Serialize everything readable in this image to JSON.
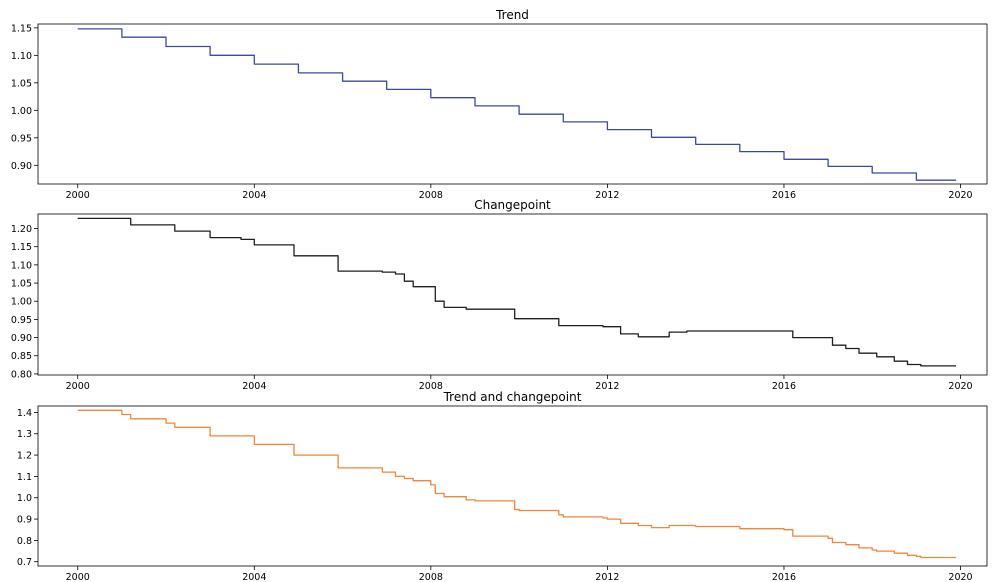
{
  "chart_data": [
    {
      "type": "line",
      "title": "Trend",
      "xlabel": "",
      "ylabel": "",
      "xlim": [
        1999.1,
        2020.6
      ],
      "ylim": [
        0.866,
        1.157
      ],
      "color": "#3b4a9c",
      "x_ticks": [
        2000,
        2004,
        2008,
        2012,
        2016,
        2020
      ],
      "x_tick_labels": [
        "2000",
        "2004",
        "2008",
        "2012",
        "2016",
        "2020"
      ],
      "y_ticks": [
        0.9,
        0.95,
        1.0,
        1.05,
        1.1,
        1.15
      ],
      "y_tick_labels": [
        "0.90",
        "0.95",
        "1.00",
        "1.05",
        "1.10",
        "1.15"
      ],
      "series": [
        {
          "step": "post",
          "x": [
            2000,
            2001,
            2002,
            2003,
            2004,
            2005,
            2006,
            2007,
            2008,
            2009,
            2010,
            2011,
            2012,
            2013,
            2014,
            2015,
            2016,
            2017,
            2018,
            2019,
            2019.9
          ],
          "y": [
            1.148,
            1.133,
            1.116,
            1.1,
            1.084,
            1.068,
            1.053,
            1.038,
            1.023,
            1.008,
            0.993,
            0.979,
            0.965,
            0.951,
            0.938,
            0.925,
            0.911,
            0.898,
            0.886,
            0.873,
            0.873
          ]
        }
      ]
    },
    {
      "type": "line",
      "title": "Changepoint",
      "xlabel": "",
      "ylabel": "",
      "xlim": [
        1999.1,
        2020.6
      ],
      "ylim": [
        0.797,
        1.24
      ],
      "color": "#1f1f1f",
      "x_ticks": [
        2000,
        2004,
        2008,
        2012,
        2016,
        2020
      ],
      "x_tick_labels": [
        "2000",
        "2004",
        "2008",
        "2012",
        "2016",
        "2020"
      ],
      "y_ticks": [
        0.8,
        0.85,
        0.9,
        0.95,
        1.0,
        1.05,
        1.1,
        1.15,
        1.2
      ],
      "y_tick_labels": [
        "0.80",
        "0.85",
        "0.90",
        "0.95",
        "1.00",
        "1.05",
        "1.10",
        "1.15",
        "1.20"
      ],
      "series": [
        {
          "step": "post",
          "x": [
            2000,
            2001.2,
            2002.2,
            2003,
            2003.7,
            2004,
            2004.9,
            2005.9,
            2006.9,
            2007.2,
            2007.4,
            2007.6,
            2008.1,
            2008.3,
            2008.8,
            2009.9,
            2010.9,
            2011.9,
            2012.3,
            2012.7,
            2013.4,
            2013.8,
            2016.2,
            2017.1,
            2017.4,
            2017.7,
            2018.1,
            2018.5,
            2018.8,
            2019.1,
            2019.9
          ],
          "y": [
            1.228,
            1.21,
            1.193,
            1.175,
            1.17,
            1.155,
            1.125,
            1.083,
            1.08,
            1.075,
            1.055,
            1.04,
            1.0,
            0.983,
            0.978,
            0.952,
            0.933,
            0.93,
            0.91,
            0.902,
            0.915,
            0.918,
            0.9,
            0.879,
            0.87,
            0.857,
            0.847,
            0.835,
            0.826,
            0.822,
            0.822
          ]
        }
      ]
    },
    {
      "type": "line",
      "title": "Trend and changepoint",
      "xlabel": "",
      "ylabel": "",
      "xlim": [
        1999.1,
        2020.6
      ],
      "ylim": [
        0.68,
        1.43
      ],
      "color": "#f0863a",
      "x_ticks": [
        2000,
        2004,
        2008,
        2012,
        2016,
        2020
      ],
      "x_tick_labels": [
        "2000",
        "2004",
        "2008",
        "2012",
        "2016",
        "2020"
      ],
      "y_ticks": [
        0.7,
        0.8,
        0.9,
        1.0,
        1.1,
        1.2,
        1.3,
        1.4
      ],
      "y_tick_labels": [
        "0.7",
        "0.8",
        "0.9",
        "1.0",
        "1.1",
        "1.2",
        "1.3",
        "1.4"
      ],
      "series": [
        {
          "step": "post",
          "x": [
            2000,
            2001,
            2001.2,
            2002,
            2002.2,
            2003,
            2004,
            2004.9,
            2005.9,
            2006.9,
            2007.2,
            2007.4,
            2007.6,
            2008,
            2008.1,
            2008.3,
            2008.8,
            2009,
            2009.9,
            2010,
            2010.9,
            2011,
            2011.9,
            2012,
            2012.3,
            2012.7,
            2013,
            2013.4,
            2013.8,
            2014,
            2015,
            2016,
            2016.2,
            2017,
            2017.1,
            2017.4,
            2017.7,
            2018,
            2018.1,
            2018.5,
            2018.8,
            2019,
            2019.1,
            2019.9
          ],
          "y": [
            1.41,
            1.39,
            1.37,
            1.35,
            1.33,
            1.29,
            1.25,
            1.2,
            1.14,
            1.12,
            1.1,
            1.09,
            1.08,
            1.06,
            1.02,
            1.005,
            0.99,
            0.985,
            0.945,
            0.94,
            0.92,
            0.91,
            0.905,
            0.9,
            0.88,
            0.87,
            0.86,
            0.87,
            0.87,
            0.865,
            0.855,
            0.85,
            0.82,
            0.81,
            0.79,
            0.78,
            0.765,
            0.755,
            0.75,
            0.74,
            0.73,
            0.725,
            0.72,
            0.72
          ]
        }
      ]
    }
  ]
}
